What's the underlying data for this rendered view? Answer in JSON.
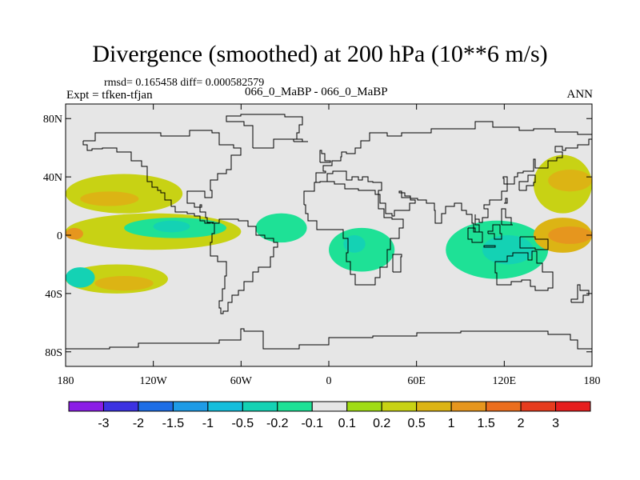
{
  "title": "Divergence (smoothed) at 200 hPa (10**6 m/s)",
  "stats": "rmsd= 0.165458 diff= 0.000582579",
  "experiment": "Expt = tfken-tfjan",
  "case_diff": "066_0_MaBP - 066_0_MaBP",
  "season": "ANN",
  "lat_ticks": [
    {
      "label": "80N",
      "lat": 80
    },
    {
      "label": "40N",
      "lat": 40
    },
    {
      "label": "0",
      "lat": 0
    },
    {
      "label": "40S",
      "lat": -40
    },
    {
      "label": "80S",
      "lat": -80
    }
  ],
  "lon_ticks": [
    {
      "label": "180",
      "lon": -180
    },
    {
      "label": "120W",
      "lon": -120
    },
    {
      "label": "60W",
      "lon": -60
    },
    {
      "label": "0",
      "lon": 0
    },
    {
      "label": "60E",
      "lon": 60
    },
    {
      "label": "120E",
      "lon": 120
    },
    {
      "label": "180",
      "lon": 180
    }
  ],
  "colorbar": {
    "colors": [
      "#8b1ee6",
      "#3c32e1",
      "#1e6ee6",
      "#1e9be6",
      "#14bedc",
      "#14d2b4",
      "#1ee196",
      "#e6e6e6",
      "#a0dc14",
      "#c8d214",
      "#dcb414",
      "#e6961e",
      "#eb6e1e",
      "#e63c1e",
      "#e61e1e"
    ],
    "labels": [
      "-3",
      "-2",
      "-1.5",
      "-1",
      "-0.5",
      "-0.2",
      "-0.1",
      "0.1",
      "0.2",
      "0.5",
      "1",
      "1.5",
      "2",
      "3"
    ]
  },
  "chart_data": {
    "type": "heatmap",
    "variable": "Divergence (smoothed)",
    "level": "200 hPa",
    "units": "10**6 m/s",
    "lon_range": [
      -180,
      180
    ],
    "lat_range": [
      -90,
      90
    ],
    "background_value_range": [
      -0.1,
      0.1
    ],
    "levels": [
      -3,
      -2,
      -1.5,
      -1,
      -0.5,
      -0.2,
      -0.1,
      0.1,
      0.2,
      0.5,
      1,
      1.5,
      2,
      3
    ],
    "features": [
      {
        "region": "North Pacific band (east)",
        "lon": [
          -180,
          -100
        ],
        "lat": [
          15,
          42
        ],
        "value": 0.2
      },
      {
        "region": "North Pacific core",
        "lon": [
          -170,
          -130
        ],
        "lat": [
          20,
          30
        ],
        "value": 0.5
      },
      {
        "region": "Tropical Pacific band",
        "lon": [
          -180,
          -60
        ],
        "lat": [
          -10,
          15
        ],
        "value": 0.2
      },
      {
        "region": "Tropical Pacific core",
        "lon": [
          -180,
          -168
        ],
        "lat": [
          -3,
          5
        ],
        "value": 1
      },
      {
        "region": "SE Pacific convergence",
        "lon": [
          -180,
          -110
        ],
        "lat": [
          -40,
          -20
        ],
        "value": 0.2
      },
      {
        "region": "SE Pacific core",
        "lon": [
          -160,
          -120
        ],
        "lat": [
          -38,
          -28
        ],
        "value": 0.5
      },
      {
        "region": "SW Pacific blue",
        "lon": [
          -180,
          -160
        ],
        "lat": [
          -36,
          -22
        ],
        "value": -0.5
      },
      {
        "region": "Central Pacific negative",
        "lon": [
          -140,
          -70
        ],
        "lat": [
          -2,
          12
        ],
        "value": -0.2
      },
      {
        "region": "Central Pacific negative core",
        "lon": [
          -120,
          -95
        ],
        "lat": [
          2,
          10
        ],
        "value": -0.5
      },
      {
        "region": "Equatorial Atlantic negative",
        "lon": [
          -50,
          -15
        ],
        "lat": [
          -5,
          15
        ],
        "value": -0.2
      },
      {
        "region": "Africa/Indian negative",
        "lon": [
          0,
          45
        ],
        "lat": [
          -25,
          5
        ],
        "value": -0.2
      },
      {
        "region": "Indian core",
        "lon": [
          10,
          25
        ],
        "lat": [
          -12,
          0
        ],
        "value": -0.5
      },
      {
        "region": "West Pacific negative",
        "lon": [
          80,
          150
        ],
        "lat": [
          -30,
          10
        ],
        "value": -0.2
      },
      {
        "region": "West Pacific core",
        "lon": [
          105,
          140
        ],
        "lat": [
          -20,
          0
        ],
        "value": -0.5
      },
      {
        "region": "Northwest Pacific positive",
        "lon": [
          140,
          180
        ],
        "lat": [
          15,
          55
        ],
        "value": 0.2
      },
      {
        "region": "Northwest Pacific core",
        "lon": [
          150,
          180
        ],
        "lat": [
          30,
          45
        ],
        "value": 0.5
      },
      {
        "region": "Equatorial West Pacific positive",
        "lon": [
          140,
          180
        ],
        "lat": [
          -12,
          12
        ],
        "value": 0.5
      },
      {
        "region": "Equatorial West Pacific core",
        "lon": [
          150,
          180
        ],
        "lat": [
          -6,
          6
        ],
        "value": 1
      }
    ]
  }
}
